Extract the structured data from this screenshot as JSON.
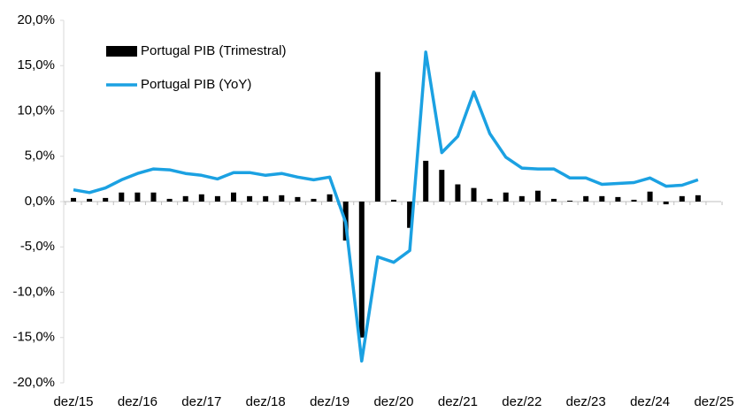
{
  "chart_data": {
    "type": "bar-line",
    "categories": [
      "dez/15",
      null,
      null,
      null,
      "dez/16",
      null,
      null,
      null,
      "dez/17",
      null,
      null,
      null,
      "dez/18",
      null,
      null,
      null,
      "dez/19",
      null,
      null,
      null,
      "dez/20",
      null,
      null,
      null,
      "dez/21",
      null,
      null,
      null,
      "dez/22",
      null,
      null,
      null,
      "dez/23",
      null,
      null,
      null,
      "dez/24",
      null,
      null,
      null,
      "dez/25"
    ],
    "series": [
      {
        "name": "Portugal PIB (Trimestral)",
        "type": "bar",
        "color": "#000000",
        "values": [
          0.4,
          0.3,
          0.4,
          1.0,
          1.0,
          1.0,
          0.3,
          0.6,
          0.8,
          0.6,
          1.0,
          0.6,
          0.6,
          0.7,
          0.5,
          0.3,
          0.8,
          -4.3,
          -15.0,
          14.3,
          0.2,
          -2.9,
          4.5,
          3.5,
          1.9,
          1.5,
          0.3,
          1.0,
          0.6,
          1.2,
          0.3,
          0.1,
          0.6,
          0.6,
          0.5,
          0.2,
          1.1,
          -0.3,
          0.6,
          0.7,
          null
        ]
      },
      {
        "name": "Portugal PIB (YoY)",
        "type": "line",
        "color": "#1ba1e2",
        "values": [
          1.3,
          1.0,
          1.5,
          2.4,
          3.1,
          3.6,
          3.5,
          3.1,
          2.9,
          2.5,
          3.2,
          3.2,
          2.9,
          3.1,
          2.7,
          2.4,
          2.7,
          -2.3,
          -17.6,
          -6.1,
          -6.7,
          -5.4,
          16.5,
          5.4,
          7.2,
          12.1,
          7.5,
          4.9,
          3.7,
          3.6,
          3.6,
          2.6,
          2.6,
          1.9,
          2.0,
          2.1,
          2.6,
          1.7,
          1.8,
          2.4,
          null
        ]
      }
    ],
    "ylim": [
      -20,
      20
    ],
    "yticks": [
      {
        "value": -20,
        "label": "-20,0%"
      },
      {
        "value": -15,
        "label": "-15,0%"
      },
      {
        "value": -10,
        "label": "-10,0%"
      },
      {
        "value": -5,
        "label": "-5,0%"
      },
      {
        "value": 0,
        "label": "0,0%"
      },
      {
        "value": 5,
        "label": "5,0%"
      },
      {
        "value": 10,
        "label": "10,0%"
      },
      {
        "value": 15,
        "label": "15,0%"
      },
      {
        "value": 20,
        "label": "20,0%"
      }
    ],
    "legend": "top-left",
    "grid": false
  }
}
